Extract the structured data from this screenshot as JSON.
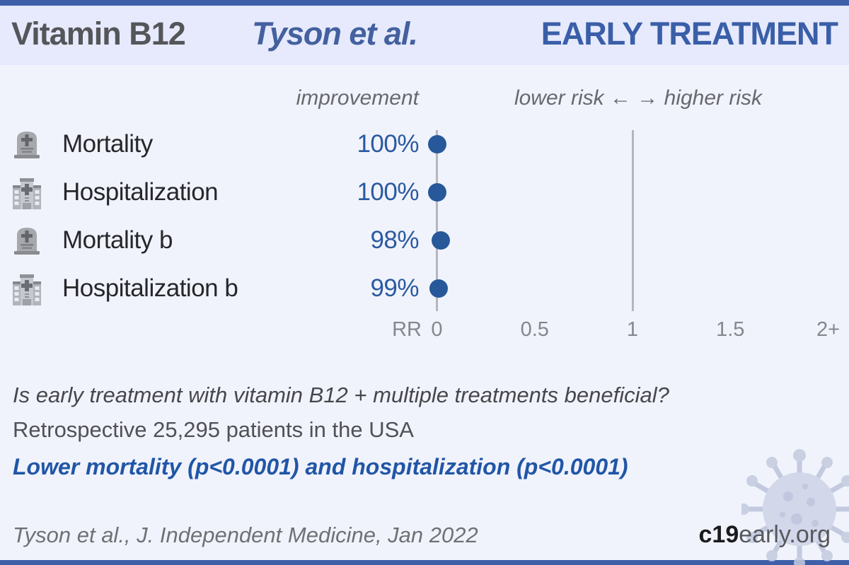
{
  "header": {
    "treatment": "Vitamin B12",
    "authors": "Tyson et al.",
    "stage": "EARLY TREATMENT"
  },
  "plot": {
    "improvement_label": "improvement",
    "risk_label": "lower risk ←  → higher risk",
    "rows": [
      {
        "icon": "tombstone",
        "label": "Mortality",
        "improvement": "100%",
        "rr": 0.0
      },
      {
        "icon": "hospital",
        "label": "Hospitalization",
        "improvement": "100%",
        "rr": 0.0
      },
      {
        "icon": "tombstone",
        "label": "Mortality b",
        "improvement": "98%",
        "rr": 0.02
      },
      {
        "icon": "hospital",
        "label": "Hospitalization b",
        "improvement": "99%",
        "rr": 0.01
      }
    ],
    "axis": {
      "rr_label": "RR",
      "ticks": [
        "0",
        "0.5",
        "1",
        "1.5",
        "2+"
      ],
      "tick_values": [
        0,
        0.5,
        1,
        1.5,
        2
      ]
    }
  },
  "summary": {
    "question": "Is early treatment with vitamin B12 + multiple treatments beneficial?",
    "study": "Retrospective 25,295 patients in the USA",
    "result": "Lower mortality (p<0.0001) and hospitalization (p<0.0001)"
  },
  "footer": {
    "citation": "Tyson et al., J. Independent Medicine, Jan 2022",
    "site_bold": "c19",
    "site_rest": "early.org"
  },
  "colors": {
    "accent_blue": "#2156a6",
    "dot_blue": "#26589a",
    "header_band": "#e6eafc",
    "background": "#f1f3fc",
    "border_bar": "#3f5fa9",
    "gray_text": "#67696e"
  },
  "chart_data": {
    "type": "scatter",
    "subtype": "forest-plot",
    "title": "Vitamin B12 — Tyson et al. — EARLY TREATMENT",
    "xlabel": "RR",
    "xlim": [
      0,
      2
    ],
    "x_ticks": [
      0,
      0.5,
      1,
      1.5,
      2
    ],
    "x_tick_labels": [
      "0",
      "0.5",
      "1",
      "1.5",
      "2+"
    ],
    "reference_lines_x": [
      0,
      1
    ],
    "legend": "improvement | lower risk ← → higher risk",
    "points": [
      {
        "label": "Mortality",
        "improvement_pct": 100,
        "rr": 0.0
      },
      {
        "label": "Hospitalization",
        "improvement_pct": 100,
        "rr": 0.0
      },
      {
        "label": "Mortality b",
        "improvement_pct": 98,
        "rr": 0.02
      },
      {
        "label": "Hospitalization b",
        "improvement_pct": 99,
        "rr": 0.01
      }
    ]
  }
}
